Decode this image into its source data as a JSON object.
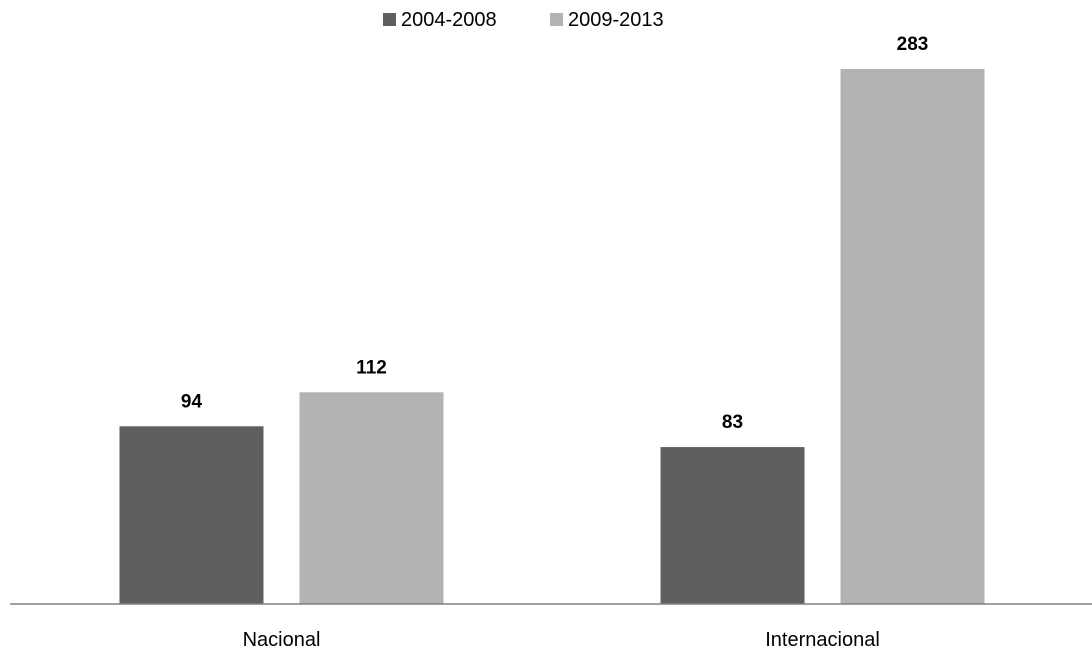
{
  "chart_data": {
    "type": "bar",
    "title": "",
    "xlabel": "",
    "ylabel": "",
    "categories": [
      "Nacional",
      "Internacional"
    ],
    "series": [
      {
        "name": "2004-2008",
        "color": "#5f5f5f",
        "values": [
          94,
          83
        ]
      },
      {
        "name": "2009-2013",
        "color": "#b3b3b3",
        "values": [
          112,
          283
        ]
      }
    ],
    "ylim": [
      0,
      283
    ],
    "grid": false,
    "legend_position": "top",
    "data_labels": true
  }
}
